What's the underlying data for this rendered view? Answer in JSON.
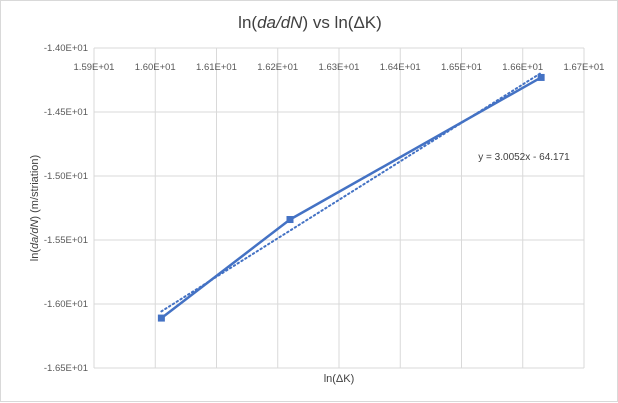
{
  "chart_data": {
    "type": "scatter",
    "title": "ln(da/dN) vs ln(ΔK)",
    "xlabel": "ln(ΔK)",
    "ylabel": "ln(da/dN)  (m/striation)",
    "xlim": [
      15.9,
      16.7
    ],
    "ylim": [
      -16.5,
      -14.0
    ],
    "x_ticks": [
      "1.59E+01",
      "1.60E+01",
      "1.61E+01",
      "1.62E+01",
      "1.63E+01",
      "1.64E+01",
      "1.65E+01",
      "1.66E+01",
      "1.67E+01"
    ],
    "x_tick_values": [
      15.9,
      16.0,
      16.1,
      16.2,
      16.3,
      16.4,
      16.5,
      16.6,
      16.7
    ],
    "y_ticks": [
      "-1.40E+01",
      "-1.45E+01",
      "-1.50E+01",
      "-1.55E+01",
      "-1.60E+01",
      "-1.65E+01"
    ],
    "y_tick_values": [
      -14.0,
      -14.5,
      -15.0,
      -15.5,
      -16.0,
      -16.5
    ],
    "x_axis_position": "top",
    "grid": true,
    "series": [
      {
        "x": [
          16.01,
          16.22,
          16.63
        ],
        "y": [
          -16.11,
          -15.34,
          -14.23
        ],
        "marker": "square",
        "line": "solid",
        "color": "#4472c4"
      }
    ],
    "trendline": {
      "type": "linear",
      "slope": 3.0052,
      "intercept": -64.171,
      "style": "dotted",
      "color": "#4472c4",
      "label": "y = 3.0052x - 64.171"
    }
  }
}
